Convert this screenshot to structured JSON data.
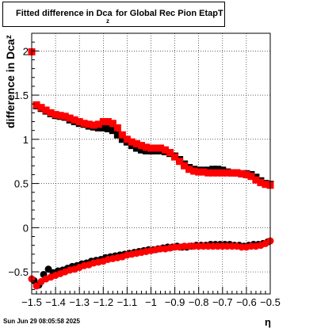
{
  "title": {
    "main": "Fitted difference in Dca",
    "subscript": "z",
    "rest": " for Global Rec Pion EtapT"
  },
  "footer_text": "Sun Jun 29 08:05:58 2025",
  "chart_data": {
    "type": "scatter",
    "xlabel": "η",
    "ylabel": "difference in Dca",
    "ylabel_sub": "z",
    "xlim": [
      -1.5,
      -0.5
    ],
    "ylim": [
      -0.75,
      2.2
    ],
    "grid": true,
    "x_ticks": [
      -1.5,
      -1.4,
      -1.3,
      -1.2,
      -1.1,
      -1.0,
      -0.9,
      -0.8,
      -0.7,
      -0.6,
      -0.5
    ],
    "x_tick_labels": [
      "−1.5",
      "−1.4",
      "−1.3",
      "−1.2",
      "−1.1",
      "−1",
      "−0.9",
      "−0.8",
      "−0.7",
      "−0.6",
      "−0.5"
    ],
    "y_ticks": [
      -0.5,
      0,
      0.5,
      1,
      1.5,
      2
    ],
    "y_tick_labels": [
      "−0.5",
      "0",
      "0.5",
      "1",
      "1.5",
      "2"
    ],
    "series": [
      {
        "color": "#000000",
        "marker": "square",
        "x": [
          -1.48,
          -1.46,
          -1.44,
          -1.42,
          -1.4,
          -1.38,
          -1.36,
          -1.34,
          -1.32,
          -1.3,
          -1.28,
          -1.26,
          -1.24,
          -1.22,
          -1.2,
          -1.18,
          -1.16,
          -1.14,
          -1.12,
          -1.1,
          -1.08,
          -1.06,
          -1.04,
          -1.02,
          -1.0,
          -0.98,
          -0.96,
          -0.94,
          -0.92,
          -0.9,
          -0.88,
          -0.86,
          -0.84,
          -0.82,
          -0.8,
          -0.78,
          -0.76,
          -0.74,
          -0.72,
          -0.7,
          -0.68,
          -0.66,
          -0.64,
          -0.62,
          -0.6,
          -0.58,
          -0.56,
          -0.54,
          -0.52,
          -0.5
        ],
        "y": [
          1.38,
          1.35,
          1.32,
          1.29,
          1.27,
          1.26,
          1.25,
          1.22,
          1.2,
          1.18,
          1.17,
          1.15,
          1.14,
          1.13,
          1.13,
          1.12,
          1.1,
          1.05,
          1.0,
          0.97,
          0.93,
          0.9,
          0.88,
          0.87,
          0.87,
          0.87,
          0.87,
          0.86,
          0.84,
          0.81,
          0.77,
          0.72,
          0.68,
          0.66,
          0.65,
          0.65,
          0.65,
          0.66,
          0.66,
          0.65,
          0.63,
          0.62,
          0.62,
          0.61,
          0.61,
          0.6,
          0.57,
          0.53,
          0.5,
          0.49
        ]
      },
      {
        "color": "#ff0000",
        "marker": "square",
        "x": [
          -1.5,
          -1.48,
          -1.46,
          -1.44,
          -1.42,
          -1.4,
          -1.38,
          -1.36,
          -1.34,
          -1.32,
          -1.3,
          -1.28,
          -1.26,
          -1.24,
          -1.22,
          -1.2,
          -1.18,
          -1.16,
          -1.14,
          -1.12,
          -1.1,
          -1.08,
          -1.06,
          -1.04,
          -1.02,
          -1.0,
          -0.98,
          -0.96,
          -0.94,
          -0.92,
          -0.9,
          -0.88,
          -0.86,
          -0.84,
          -0.82,
          -0.8,
          -0.78,
          -0.76,
          -0.74,
          -0.72,
          -0.7,
          -0.68,
          -0.66,
          -0.64,
          -0.62,
          -0.6,
          -0.58,
          -0.56,
          -0.54,
          -0.52,
          -0.5
        ],
        "y": [
          1.99,
          1.39,
          1.36,
          1.33,
          1.3,
          1.28,
          1.27,
          1.26,
          1.24,
          1.22,
          1.2,
          1.18,
          1.17,
          1.16,
          1.17,
          1.2,
          1.2,
          1.18,
          1.13,
          1.05,
          1.0,
          0.97,
          0.95,
          0.93,
          0.91,
          0.9,
          0.9,
          0.9,
          0.88,
          0.85,
          0.8,
          0.75,
          0.7,
          0.66,
          0.64,
          0.63,
          0.63,
          0.62,
          0.62,
          0.62,
          0.62,
          0.62,
          0.62,
          0.62,
          0.61,
          0.6,
          0.58,
          0.54,
          0.51,
          0.49,
          0.48
        ]
      },
      {
        "color": "#000000",
        "marker": "circle",
        "x": [
          -1.49,
          -1.47,
          -1.45,
          -1.43,
          -1.41,
          -1.39,
          -1.37,
          -1.35,
          -1.33,
          -1.31,
          -1.29,
          -1.27,
          -1.25,
          -1.23,
          -1.21,
          -1.19,
          -1.17,
          -1.15,
          -1.13,
          -1.11,
          -1.09,
          -1.07,
          -1.05,
          -1.03,
          -1.01,
          -0.99,
          -0.97,
          -0.95,
          -0.93,
          -0.91,
          -0.89,
          -0.87,
          -0.85,
          -0.83,
          -0.81,
          -0.79,
          -0.77,
          -0.75,
          -0.73,
          -0.71,
          -0.69,
          -0.67,
          -0.65,
          -0.63,
          -0.61,
          -0.59,
          -0.57,
          -0.55,
          -0.53,
          -0.51
        ],
        "y": [
          -0.6,
          -0.65,
          -0.53,
          -0.47,
          -0.51,
          -0.49,
          -0.48,
          -0.46,
          -0.44,
          -0.43,
          -0.41,
          -0.4,
          -0.38,
          -0.37,
          -0.36,
          -0.34,
          -0.33,
          -0.32,
          -0.31,
          -0.3,
          -0.29,
          -0.28,
          -0.27,
          -0.26,
          -0.25,
          -0.25,
          -0.24,
          -0.23,
          -0.22,
          -0.22,
          -0.21,
          -0.22,
          -0.22,
          -0.21,
          -0.2,
          -0.2,
          -0.2,
          -0.19,
          -0.19,
          -0.19,
          -0.19,
          -0.19,
          -0.2,
          -0.2,
          -0.21,
          -0.2,
          -0.19,
          -0.19,
          -0.18,
          -0.16
        ]
      },
      {
        "color": "#ff0000",
        "marker": "circle",
        "x": [
          -1.5,
          -1.48,
          -1.46,
          -1.44,
          -1.42,
          -1.4,
          -1.38,
          -1.36,
          -1.34,
          -1.32,
          -1.3,
          -1.28,
          -1.26,
          -1.24,
          -1.22,
          -1.2,
          -1.18,
          -1.16,
          -1.14,
          -1.12,
          -1.1,
          -1.08,
          -1.06,
          -1.04,
          -1.02,
          -1.0,
          -0.98,
          -0.96,
          -0.94,
          -0.92,
          -0.9,
          -0.88,
          -0.86,
          -0.84,
          -0.82,
          -0.8,
          -0.78,
          -0.76,
          -0.74,
          -0.72,
          -0.7,
          -0.68,
          -0.66,
          -0.64,
          -0.62,
          -0.6,
          -0.58,
          -0.56,
          -0.54,
          -0.52,
          -0.5
        ],
        "y": [
          -0.58,
          -0.66,
          -0.61,
          -0.58,
          -0.56,
          -0.54,
          -0.52,
          -0.5,
          -0.48,
          -0.47,
          -0.45,
          -0.43,
          -0.42,
          -0.4,
          -0.39,
          -0.38,
          -0.36,
          -0.35,
          -0.34,
          -0.33,
          -0.31,
          -0.3,
          -0.29,
          -0.28,
          -0.27,
          -0.26,
          -0.25,
          -0.24,
          -0.24,
          -0.23,
          -0.22,
          -0.22,
          -0.21,
          -0.21,
          -0.21,
          -0.21,
          -0.21,
          -0.21,
          -0.21,
          -0.21,
          -0.21,
          -0.21,
          -0.21,
          -0.21,
          -0.22,
          -0.22,
          -0.21,
          -0.21,
          -0.2,
          -0.18,
          -0.15
        ]
      }
    ]
  }
}
